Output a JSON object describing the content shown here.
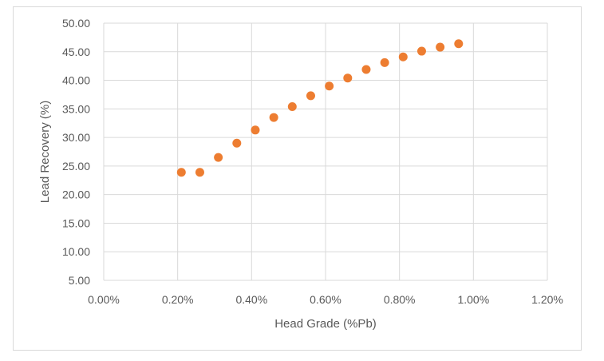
{
  "chart_data": {
    "type": "scatter",
    "title": "",
    "xlabel": "Head Grade (%Pb)",
    "ylabel": "Lead Recovery (%)",
    "xlim": [
      0.0,
      0.012
    ],
    "ylim": [
      5.0,
      50.0
    ],
    "x_ticks": [
      0.0,
      0.002,
      0.004,
      0.006,
      0.008,
      0.01,
      0.012
    ],
    "x_tick_labels": [
      "0.00%",
      "0.20%",
      "0.40%",
      "0.60%",
      "0.80%",
      "1.00%",
      "1.20%"
    ],
    "y_ticks": [
      5,
      10,
      15,
      20,
      25,
      30,
      35,
      40,
      45,
      50
    ],
    "y_tick_labels": [
      "5.00",
      "10.00",
      "15.00",
      "20.00",
      "25.00",
      "30.00",
      "35.00",
      "40.00",
      "45.00",
      "50.00"
    ],
    "grid": true,
    "marker_color": "#ED7D31",
    "series": [
      {
        "x": [
          0.0021,
          0.0026,
          0.0031,
          0.0036,
          0.0041,
          0.0046,
          0.0051,
          0.0056,
          0.0061,
          0.0066,
          0.0071,
          0.0076,
          0.0081,
          0.0086,
          0.0091,
          0.0096
        ],
        "y": [
          23.9,
          23.9,
          26.5,
          29.0,
          31.3,
          33.5,
          35.4,
          37.3,
          39.0,
          40.4,
          41.9,
          43.1,
          44.1,
          45.1,
          45.8,
          46.4
        ]
      }
    ]
  }
}
